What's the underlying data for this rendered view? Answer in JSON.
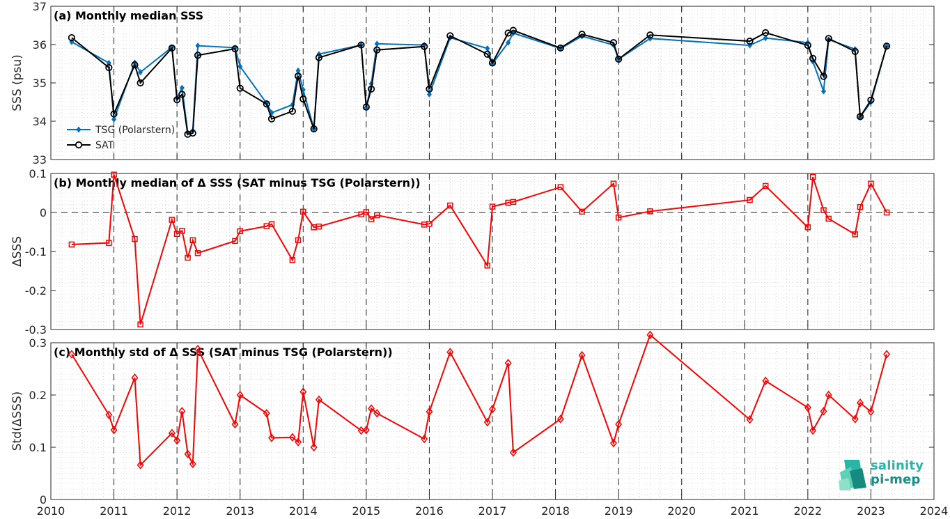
{
  "chart_data": [
    {
      "type": "line",
      "title": "(a) Monthly median SSS",
      "ylabel": "SSS (psu)",
      "xlim": [
        2010,
        2024
      ],
      "ylim": [
        33,
        37
      ],
      "yticks": [
        "33",
        "34",
        "35",
        "36",
        "37"
      ],
      "grid": "minor dotted",
      "legend_position": "lower-left",
      "series": [
        {
          "name": "TSG (Polarstern)",
          "color": "#0072bd",
          "marker": "dot",
          "x": [
            2010.33,
            2010.92,
            2011.0,
            2011.33,
            2011.42,
            2011.92,
            2012.0,
            2012.08,
            2012.17,
            2012.25,
            2012.33,
            2012.92,
            2013.0,
            2013.42,
            2013.5,
            2013.83,
            2013.92,
            2014.0,
            2014.17,
            2014.25,
            2014.92,
            2015.0,
            2015.08,
            2015.17,
            2015.92,
            2016.0,
            2016.33,
            2016.92,
            2017.0,
            2017.25,
            2017.33,
            2018.08,
            2018.42,
            2018.92,
            2019.0,
            2019.5,
            2021.08,
            2021.33,
            2022.0,
            2022.08,
            2022.25,
            2022.33,
            2022.75,
            2022.83,
            2023.0,
            2023.25
          ],
          "y": [
            36.07,
            35.52,
            34.05,
            35.53,
            35.28,
            35.93,
            34.6,
            34.87,
            33.7,
            33.75,
            35.97,
            35.92,
            35.43,
            34.47,
            34.22,
            34.43,
            35.32,
            34.82,
            33.8,
            35.75,
            35.99,
            34.35,
            34.98,
            36.02,
            35.99,
            34.7,
            36.18,
            35.9,
            35.5,
            36.05,
            36.3,
            35.9,
            36.22,
            35.99,
            35.62,
            36.16,
            35.98,
            36.17,
            36.05,
            35.56,
            34.78,
            36.13,
            35.88,
            34.11,
            34.5,
            35.96
          ]
        },
        {
          "name": "SAT",
          "color": "#000000",
          "marker": "circle",
          "x": [
            2010.33,
            2010.92,
            2011.0,
            2011.33,
            2011.42,
            2011.92,
            2012.0,
            2012.08,
            2012.17,
            2012.25,
            2012.33,
            2012.92,
            2013.0,
            2013.42,
            2013.5,
            2013.83,
            2013.92,
            2014.0,
            2014.17,
            2014.25,
            2014.92,
            2015.0,
            2015.08,
            2015.17,
            2015.92,
            2016.0,
            2016.33,
            2016.92,
            2017.0,
            2017.25,
            2017.33,
            2018.08,
            2018.42,
            2018.92,
            2019.0,
            2019.5,
            2021.08,
            2021.33,
            2022.0,
            2022.08,
            2022.25,
            2022.33,
            2022.75,
            2022.83,
            2023.0,
            2023.25
          ],
          "y": [
            36.18,
            35.4,
            34.19,
            35.47,
            35.0,
            35.91,
            34.56,
            34.7,
            33.66,
            33.69,
            35.72,
            35.89,
            34.86,
            34.45,
            34.06,
            34.26,
            35.18,
            34.58,
            33.8,
            35.66,
            35.99,
            34.37,
            34.84,
            35.86,
            35.95,
            34.84,
            36.23,
            35.75,
            35.52,
            36.3,
            36.37,
            35.91,
            36.27,
            36.05,
            35.62,
            36.25,
            36.09,
            36.31,
            35.98,
            35.64,
            35.17,
            36.16,
            35.82,
            34.12,
            34.55,
            35.96
          ]
        }
      ]
    },
    {
      "type": "line",
      "title": "(b) Monthly median of Δ SSS (SAT minus TSG (Polarstern))",
      "ylabel": "ΔSSS",
      "xlim": [
        2010,
        2024
      ],
      "ylim": [
        -0.3,
        0.1
      ],
      "yticks": [
        "-0.3",
        "-0.2",
        "-0.1",
        "0",
        "0.1"
      ],
      "reference_line": 0,
      "series": [
        {
          "color": "#ff0000",
          "marker": "square",
          "x": [
            2010.33,
            2010.92,
            2011.0,
            2011.33,
            2011.42,
            2011.92,
            2012.0,
            2012.08,
            2012.17,
            2012.25,
            2012.33,
            2012.92,
            2013.0,
            2013.42,
            2013.5,
            2013.83,
            2013.92,
            2014.0,
            2014.17,
            2014.25,
            2014.92,
            2015.0,
            2015.08,
            2015.17,
            2015.92,
            2016.0,
            2016.33,
            2016.92,
            2017.0,
            2017.25,
            2017.33,
            2018.08,
            2018.42,
            2018.92,
            2019.0,
            2019.5,
            2021.08,
            2021.33,
            2022.0,
            2022.08,
            2022.25,
            2022.33,
            2022.75,
            2022.83,
            2023.0,
            2023.25
          ],
          "y": [
            -0.082,
            -0.078,
            0.097,
            -0.068,
            -0.287,
            -0.019,
            -0.055,
            -0.047,
            -0.116,
            -0.071,
            -0.104,
            -0.073,
            -0.048,
            -0.035,
            -0.03,
            -0.122,
            -0.071,
            0.002,
            -0.038,
            -0.036,
            -0.005,
            0.001,
            -0.017,
            -0.007,
            -0.031,
            -0.029,
            0.018,
            -0.136,
            0.015,
            0.025,
            0.027,
            0.065,
            0.002,
            0.074,
            -0.013,
            0.003,
            0.032,
            0.068,
            -0.038,
            0.091,
            0.006,
            -0.016,
            -0.056,
            0.014,
            0.074,
            0.0
          ]
        }
      ]
    },
    {
      "type": "line",
      "title": "(c) Monthly std of Δ SSS (SAT minus TSG (Polarstern))",
      "ylabel": "Std(ΔSSS)",
      "xlabel": "",
      "xlim": [
        2010,
        2024
      ],
      "ylim": [
        0,
        0.3
      ],
      "yticks": [
        "0",
        "0.1",
        "0.2",
        "0.3"
      ],
      "xticks": [
        "2010",
        "2011",
        "2012",
        "2013",
        "2014",
        "2015",
        "2016",
        "2017",
        "2018",
        "2019",
        "2020",
        "2021",
        "2022",
        "2023",
        "2024"
      ],
      "series": [
        {
          "color": "#ff0000",
          "marker": "diamond",
          "x": [
            2010.33,
            2010.92,
            2011.0,
            2011.33,
            2011.42,
            2011.92,
            2012.0,
            2012.08,
            2012.17,
            2012.25,
            2012.33,
            2012.92,
            2013.0,
            2013.42,
            2013.5,
            2013.83,
            2013.92,
            2014.0,
            2014.17,
            2014.25,
            2014.92,
            2015.0,
            2015.08,
            2015.17,
            2015.92,
            2016.0,
            2016.33,
            2016.92,
            2017.0,
            2017.25,
            2017.33,
            2018.08,
            2018.42,
            2018.92,
            2019.0,
            2019.5,
            2021.08,
            2021.33,
            2022.0,
            2022.08,
            2022.25,
            2022.33,
            2022.75,
            2022.83,
            2023.0,
            2023.25
          ],
          "y": [
            0.278,
            0.162,
            0.133,
            0.233,
            0.066,
            0.127,
            0.113,
            0.169,
            0.087,
            0.068,
            0.288,
            0.144,
            0.2,
            0.165,
            0.118,
            0.119,
            0.11,
            0.206,
            0.1,
            0.191,
            0.132,
            0.133,
            0.174,
            0.165,
            0.116,
            0.168,
            0.282,
            0.148,
            0.173,
            0.261,
            0.09,
            0.154,
            0.276,
            0.108,
            0.144,
            0.315,
            0.153,
            0.227,
            0.176,
            0.132,
            0.169,
            0.2,
            0.154,
            0.185,
            0.168,
            0.278
          ]
        }
      ]
    }
  ],
  "logo": {
    "line1": "salinity",
    "line2": "pi-mep"
  }
}
